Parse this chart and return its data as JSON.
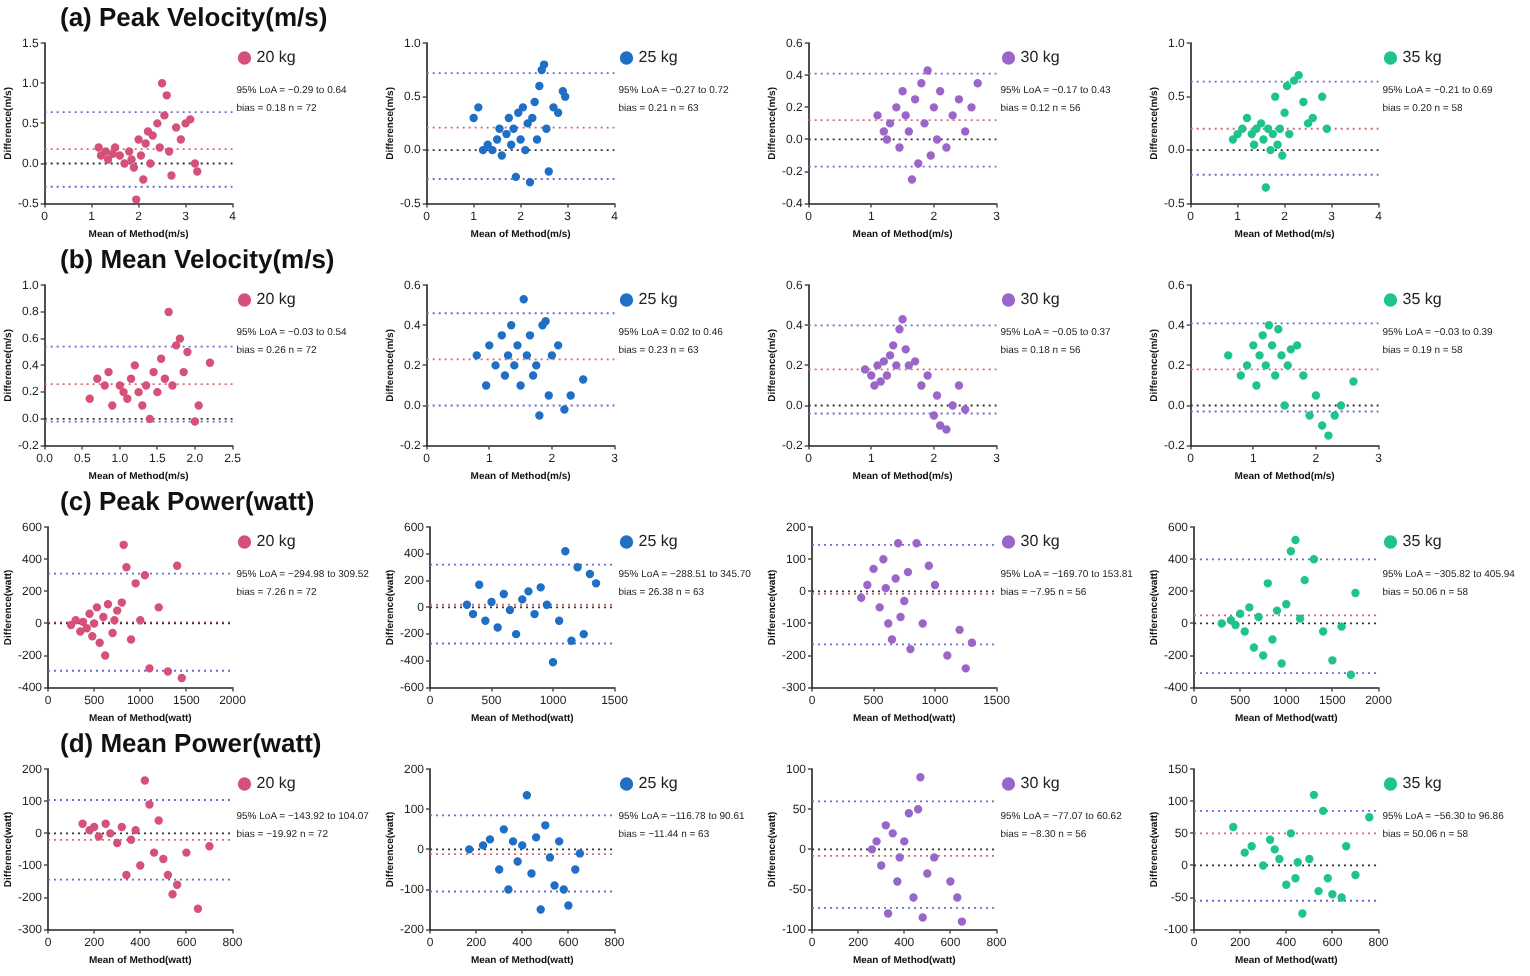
{
  "chart_data": [
    {
      "type": "scatter",
      "title": "(a) Peak Velocity(m/s)",
      "xlabel": "Mean of Method(m/s)",
      "ylabel": "Difference(m/s)",
      "legend": "right",
      "marker": "circle",
      "grid": false,
      "x": [
        1.15,
        1.2,
        1.3,
        1.35,
        1.45,
        1.5,
        1.6,
        1.7,
        1.8,
        1.85,
        1.9,
        1.95,
        2.0,
        2.05,
        2.1,
        2.15,
        2.2,
        2.25,
        2.3,
        2.4,
        2.45,
        2.5,
        2.55,
        2.6,
        2.65,
        2.7,
        2.8,
        2.9,
        3.0,
        3.1,
        3.2,
        3.25
      ],
      "series": [
        {
          "name": "20 kg",
          "color": "#d6517a",
          "values": [
            0.2,
            0.1,
            0.15,
            0.05,
            0.12,
            0.2,
            0.1,
            0.0,
            0.15,
            0.05,
            -0.05,
            -0.45,
            0.3,
            0.1,
            -0.2,
            0.25,
            0.4,
            0.0,
            0.35,
            0.5,
            0.2,
            1.0,
            0.6,
            0.85,
            0.15,
            -0.15,
            0.45,
            0.3,
            0.5,
            0.55,
            0.0,
            -0.1
          ]
        }
      ],
      "xlim": [
        0,
        4
      ],
      "xticks": [
        0,
        1,
        2,
        3,
        4
      ],
      "ylim": [
        -0.5,
        1.5
      ],
      "yticks": [
        {
          "value": -0.5,
          "label": "-0.5"
        },
        {
          "value": 0,
          "label": "0.0"
        },
        {
          "value": 0.5,
          "label": "0.5"
        },
        {
          "value": 1,
          "label": "1.0"
        },
        {
          "value": 1.5,
          "label": "1.5"
        }
      ],
      "ref_lines": [
        {
          "axis": "y",
          "value": 0.64,
          "color": "#6b6bd6",
          "line_style": "dotted"
        },
        {
          "axis": "y",
          "value": 0.18,
          "color": "#e06666",
          "line_style": "dotted"
        },
        {
          "axis": "y",
          "value": 0,
          "color": "#333333",
          "line_style": "dotted"
        },
        {
          "axis": "y",
          "value": -0.29,
          "color": "#6b6bd6",
          "line_style": "dotted"
        }
      ],
      "annotations": [
        "95% LoA = −0.29 to 0.64",
        "bias = 0.18 n = 72"
      ]
    },
    {
      "type": "scatter",
      "xlabel": "Mean of Method(m/s)",
      "ylabel": "Difference(m/s)",
      "legend": "right",
      "marker": "circle",
      "grid": false,
      "x": [
        1.0,
        1.1,
        1.2,
        1.3,
        1.4,
        1.5,
        1.55,
        1.6,
        1.7,
        1.75,
        1.8,
        1.85,
        1.9,
        1.95,
        2.0,
        2.05,
        2.1,
        2.15,
        2.2,
        2.25,
        2.3,
        2.35,
        2.4,
        2.45,
        2.5,
        2.55,
        2.6,
        2.7,
        2.8,
        2.9,
        2.95
      ],
      "series": [
        {
          "name": "25 kg",
          "color": "#1f6fc5",
          "values": [
            0.3,
            0.4,
            0.0,
            0.05,
            0.0,
            0.1,
            0.2,
            -0.05,
            0.15,
            0.3,
            0.05,
            0.2,
            -0.25,
            0.35,
            0.1,
            0.4,
            0.0,
            0.25,
            -0.3,
            0.3,
            0.45,
            0.1,
            0.6,
            0.75,
            0.8,
            0.2,
            -0.2,
            0.4,
            0.35,
            0.55,
            0.5
          ]
        }
      ],
      "xlim": [
        0,
        4
      ],
      "xticks": [
        0,
        1,
        2,
        3,
        4
      ],
      "ylim": [
        -0.5,
        1.0
      ],
      "yticks": [
        {
          "value": -0.5,
          "label": "-0.5"
        },
        {
          "value": 0,
          "label": "0.0"
        },
        {
          "value": 0.5,
          "label": "0.5"
        },
        {
          "value": 1,
          "label": "1.0"
        }
      ],
      "ref_lines": [
        {
          "axis": "y",
          "value": 0.72,
          "color": "#6b6bd6",
          "line_style": "dotted"
        },
        {
          "axis": "y",
          "value": 0.21,
          "color": "#e06666",
          "line_style": "dotted"
        },
        {
          "axis": "y",
          "value": 0,
          "color": "#333333",
          "line_style": "dotted"
        },
        {
          "axis": "y",
          "value": -0.27,
          "color": "#6b6bd6",
          "line_style": "dotted"
        }
      ],
      "annotations": [
        "95% LoA = −0.27 to 0.72",
        "bias = 0.21 n = 63"
      ]
    },
    {
      "type": "scatter",
      "xlabel": "Mean of Method(m/s)",
      "ylabel": "Difference(m/s)",
      "legend": "right",
      "marker": "circle",
      "grid": false,
      "x": [
        1.1,
        1.2,
        1.25,
        1.3,
        1.4,
        1.45,
        1.5,
        1.55,
        1.6,
        1.65,
        1.7,
        1.75,
        1.8,
        1.85,
        1.9,
        1.95,
        2.0,
        2.05,
        2.1,
        2.2,
        2.3,
        2.4,
        2.5,
        2.6,
        2.7
      ],
      "series": [
        {
          "name": "30 kg",
          "color": "#9a66c8",
          "values": [
            0.15,
            0.05,
            0.0,
            0.1,
            0.2,
            -0.05,
            0.3,
            0.15,
            0.05,
            -0.25,
            0.25,
            -0.15,
            0.35,
            0.1,
            0.43,
            -0.1,
            0.2,
            0.0,
            0.3,
            -0.05,
            0.15,
            0.25,
            0.05,
            0.2,
            0.35
          ]
        }
      ],
      "xlim": [
        0,
        3
      ],
      "xticks": [
        0,
        1,
        2,
        3
      ],
      "ylim": [
        -0.4,
        0.6
      ],
      "yticks": [
        {
          "value": -0.4,
          "label": "-0.4"
        },
        {
          "value": -0.2,
          "label": "-0.2"
        },
        {
          "value": 0,
          "label": "0.0"
        },
        {
          "value": 0.2,
          "label": "0.2"
        },
        {
          "value": 0.4,
          "label": "0.4"
        },
        {
          "value": 0.6,
          "label": "0.6"
        }
      ],
      "ref_lines": [
        {
          "axis": "y",
          "value": 0.41,
          "color": "#6b6bd6",
          "line_style": "dotted"
        },
        {
          "axis": "y",
          "value": 0.12,
          "color": "#e06666",
          "line_style": "dotted"
        },
        {
          "axis": "y",
          "value": 0,
          "color": "#333333",
          "line_style": "dotted"
        },
        {
          "axis": "y",
          "value": -0.17,
          "color": "#6b6bd6",
          "line_style": "dotted"
        }
      ],
      "annotations": [
        "95% LoA = −0.17 to 0.43",
        "bias = 0.12 n = 56"
      ]
    },
    {
      "type": "scatter",
      "xlabel": "Mean of Method(m/s)",
      "ylabel": "Difference(m/s)",
      "legend": "right",
      "marker": "circle",
      "grid": false,
      "x": [
        0.9,
        1.0,
        1.1,
        1.2,
        1.3,
        1.35,
        1.4,
        1.5,
        1.55,
        1.6,
        1.65,
        1.7,
        1.75,
        1.8,
        1.85,
        1.9,
        1.95,
        2.0,
        2.05,
        2.1,
        2.2,
        2.3,
        2.4,
        2.5,
        2.6,
        2.8,
        2.9
      ],
      "series": [
        {
          "name": "35 kg",
          "color": "#1fc48a",
          "values": [
            0.1,
            0.15,
            0.2,
            0.3,
            0.15,
            0.05,
            0.2,
            0.25,
            0.1,
            -0.35,
            0.2,
            0.0,
            0.15,
            0.5,
            0.05,
            0.2,
            -0.05,
            0.35,
            0.6,
            0.15,
            0.65,
            0.7,
            0.45,
            0.25,
            0.3,
            0.5,
            0.2
          ]
        }
      ],
      "xlim": [
        0,
        4
      ],
      "xticks": [
        0,
        1,
        2,
        3,
        4
      ],
      "ylim": [
        -0.5,
        1.0
      ],
      "yticks": [
        {
          "value": -0.5,
          "label": "-0.5"
        },
        {
          "value": 0,
          "label": "0.0"
        },
        {
          "value": 0.5,
          "label": "0.5"
        },
        {
          "value": 1,
          "label": "1.0"
        }
      ],
      "ref_lines": [
        {
          "axis": "y",
          "value": 0.64,
          "color": "#6b6bd6",
          "line_style": "dotted"
        },
        {
          "axis": "y",
          "value": 0.2,
          "color": "#e06666",
          "line_style": "dotted"
        },
        {
          "axis": "y",
          "value": 0,
          "color": "#333333",
          "line_style": "dotted"
        },
        {
          "axis": "y",
          "value": -0.23,
          "color": "#6b6bd6",
          "line_style": "dotted"
        }
      ],
      "annotations": [
        "95% LoA = −0.21 to 0.69",
        "bias = 0.20 n = 58"
      ]
    },
    {
      "type": "scatter",
      "title": "(b) Mean Velocity(m/s)",
      "xlabel": "Mean of Method(m/s)",
      "ylabel": "Difference(m/s)",
      "legend": "right",
      "marker": "circle",
      "grid": false,
      "x": [
        0.6,
        0.7,
        0.8,
        0.85,
        0.9,
        1.0,
        1.05,
        1.1,
        1.15,
        1.2,
        1.25,
        1.3,
        1.35,
        1.4,
        1.45,
        1.5,
        1.55,
        1.6,
        1.65,
        1.7,
        1.75,
        1.8,
        1.85,
        1.9,
        2.0,
        2.05,
        2.2
      ],
      "series": [
        {
          "name": "20 kg",
          "color": "#d6517a",
          "values": [
            0.15,
            0.3,
            0.25,
            0.35,
            0.1,
            0.25,
            0.2,
            0.15,
            0.3,
            0.4,
            0.2,
            0.1,
            0.25,
            0.0,
            0.35,
            0.2,
            0.45,
            0.3,
            0.8,
            0.25,
            0.55,
            0.6,
            0.35,
            0.5,
            -0.02,
            0.1,
            0.42
          ]
        }
      ],
      "xlim": [
        0,
        2.5
      ],
      "xticks": [
        {
          "value": 0,
          "label": "0.0"
        },
        {
          "value": 0.5,
          "label": "0.5"
        },
        {
          "value": 1,
          "label": "1.0"
        },
        {
          "value": 1.5,
          "label": "1.5"
        },
        {
          "value": 2,
          "label": "2.0"
        },
        {
          "value": 2.5,
          "label": "2.5"
        }
      ],
      "ylim": [
        -0.2,
        1.0
      ],
      "yticks": [
        {
          "value": -0.2,
          "label": "-0.2"
        },
        {
          "value": 0,
          "label": "0.0"
        },
        {
          "value": 0.2,
          "label": "0.2"
        },
        {
          "value": 0.4,
          "label": "0.4"
        },
        {
          "value": 0.6,
          "label": "0.6"
        },
        {
          "value": 0.8,
          "label": "0.8"
        },
        {
          "value": 1,
          "label": "1.0"
        }
      ],
      "ref_lines": [
        {
          "axis": "y",
          "value": 0.54,
          "color": "#6b6bd6",
          "line_style": "dotted"
        },
        {
          "axis": "y",
          "value": 0.26,
          "color": "#e06666",
          "line_style": "dotted"
        },
        {
          "axis": "y",
          "value": 0,
          "color": "#333333",
          "line_style": "dotted"
        },
        {
          "axis": "y",
          "value": -0.02,
          "color": "#6b6bd6",
          "line_style": "dotted"
        }
      ],
      "annotations": [
        "95% LoA = −0.03 to 0.54",
        "bias = 0.26 n = 72"
      ]
    },
    {
      "type": "scatter",
      "xlabel": "Mean of Method(m/s)",
      "ylabel": "Difference(m/s)",
      "legend": "right",
      "marker": "circle",
      "grid": false,
      "x": [
        0.8,
        0.95,
        1.0,
        1.1,
        1.2,
        1.25,
        1.3,
        1.35,
        1.4,
        1.45,
        1.5,
        1.55,
        1.6,
        1.65,
        1.7,
        1.75,
        1.8,
        1.85,
        1.9,
        1.95,
        2.0,
        2.1,
        2.2,
        2.3,
        2.5
      ],
      "series": [
        {
          "name": "25 kg",
          "color": "#1f6fc5",
          "values": [
            0.25,
            0.1,
            0.3,
            0.2,
            0.35,
            0.15,
            0.25,
            0.4,
            0.2,
            0.3,
            0.1,
            0.53,
            0.25,
            0.35,
            0.15,
            0.2,
            -0.05,
            0.4,
            0.42,
            0.05,
            0.25,
            0.3,
            -0.02,
            0.05,
            0.13
          ]
        }
      ],
      "xlim": [
        0,
        3
      ],
      "xticks": [
        0,
        1,
        2,
        3
      ],
      "ylim": [
        -0.2,
        0.6
      ],
      "yticks": [
        {
          "value": -0.2,
          "label": "-0.2"
        },
        {
          "value": 0,
          "label": "0.0"
        },
        {
          "value": 0.2,
          "label": "0.2"
        },
        {
          "value": 0.4,
          "label": "0.4"
        },
        {
          "value": 0.6,
          "label": "0.6"
        }
      ],
      "ref_lines": [
        {
          "axis": "y",
          "value": 0.46,
          "color": "#6b6bd6",
          "line_style": "dotted"
        },
        {
          "axis": "y",
          "value": 0.23,
          "color": "#e06666",
          "line_style": "dotted"
        },
        {
          "axis": "y",
          "value": 0,
          "color": "#6b6bd6",
          "line_style": "dotted"
        }
      ],
      "annotations": [
        "95% LoA = 0.02 to 0.46",
        "bias = 0.23 n = 63"
      ]
    },
    {
      "type": "scatter",
      "xlabel": "Mean of Method(m/s)",
      "ylabel": "Difference(m/s)",
      "legend": "right",
      "marker": "circle",
      "grid": false,
      "x": [
        0.9,
        1.0,
        1.05,
        1.1,
        1.15,
        1.2,
        1.25,
        1.3,
        1.35,
        1.4,
        1.45,
        1.5,
        1.55,
        1.6,
        1.7,
        1.8,
        1.9,
        2.0,
        2.05,
        2.1,
        2.2,
        2.3,
        2.4,
        2.5
      ],
      "series": [
        {
          "name": "30 kg",
          "color": "#9a66c8",
          "values": [
            0.18,
            0.15,
            0.1,
            0.2,
            0.12,
            0.22,
            0.15,
            0.25,
            0.3,
            0.2,
            0.38,
            0.43,
            0.28,
            0.2,
            0.22,
            0.1,
            0.15,
            -0.05,
            0.05,
            -0.1,
            -0.12,
            0.0,
            0.1,
            -0.02
          ]
        }
      ],
      "xlim": [
        0,
        3
      ],
      "xticks": [
        0,
        1,
        2,
        3
      ],
      "ylim": [
        -0.2,
        0.6
      ],
      "yticks": [
        {
          "value": -0.2,
          "label": "-0.2"
        },
        {
          "value": 0,
          "label": "0.0"
        },
        {
          "value": 0.2,
          "label": "0.2"
        },
        {
          "value": 0.4,
          "label": "0.4"
        },
        {
          "value": 0.6,
          "label": "0.6"
        }
      ],
      "ref_lines": [
        {
          "axis": "y",
          "value": 0.4,
          "color": "#6b6bd6",
          "line_style": "dotted"
        },
        {
          "axis": "y",
          "value": 0.18,
          "color": "#e06666",
          "line_style": "dotted"
        },
        {
          "axis": "y",
          "value": 0,
          "color": "#333333",
          "line_style": "dotted"
        },
        {
          "axis": "y",
          "value": -0.04,
          "color": "#6b6bd6",
          "line_style": "dotted"
        }
      ],
      "annotations": [
        "95% LoA = −0.05 to 0.37",
        "bias = 0.18 n = 56"
      ]
    },
    {
      "type": "scatter",
      "xlabel": "Mean of Method(m/s)",
      "ylabel": "Difference(m/s)",
      "legend": "right",
      "marker": "circle",
      "grid": false,
      "x": [
        0.6,
        0.8,
        0.9,
        1.0,
        1.05,
        1.1,
        1.15,
        1.2,
        1.25,
        1.3,
        1.35,
        1.4,
        1.45,
        1.5,
        1.55,
        1.6,
        1.7,
        1.8,
        1.9,
        2.0,
        2.1,
        2.2,
        2.3,
        2.4,
        2.6
      ],
      "series": [
        {
          "name": "35 kg",
          "color": "#1fc48a",
          "values": [
            0.25,
            0.15,
            0.2,
            0.3,
            0.1,
            0.25,
            0.35,
            0.2,
            0.4,
            0.3,
            0.15,
            0.38,
            0.25,
            0.0,
            0.2,
            0.28,
            0.3,
            0.15,
            -0.05,
            0.05,
            -0.1,
            -0.15,
            -0.05,
            0.0,
            0.12
          ]
        }
      ],
      "xlim": [
        0,
        3
      ],
      "xticks": [
        0,
        1,
        2,
        3
      ],
      "ylim": [
        -0.2,
        0.6
      ],
      "yticks": [
        {
          "value": -0.2,
          "label": "-0.2"
        },
        {
          "value": 0,
          "label": "0.0"
        },
        {
          "value": 0.2,
          "label": "0.2"
        },
        {
          "value": 0.4,
          "label": "0.4"
        },
        {
          "value": 0.6,
          "label": "0.6"
        }
      ],
      "ref_lines": [
        {
          "axis": "y",
          "value": 0.41,
          "color": "#6b6bd6",
          "line_style": "dotted"
        },
        {
          "axis": "y",
          "value": 0.18,
          "color": "#e06666",
          "line_style": "dotted"
        },
        {
          "axis": "y",
          "value": 0,
          "color": "#333333",
          "line_style": "dotted"
        },
        {
          "axis": "y",
          "value": -0.03,
          "color": "#6b6bd6",
          "line_style": "dotted"
        }
      ],
      "annotations": [
        "95% LoA = −0.03 to 0.39",
        "bias = 0.19 n = 58"
      ]
    },
    {
      "type": "scatter",
      "title": "(c) Peak Power(watt)",
      "xlabel": "Mean of Method(watt)",
      "ylabel": "Difference(watt)",
      "legend": "right",
      "marker": "circle",
      "grid": false,
      "x": [
        250,
        300,
        350,
        380,
        420,
        450,
        480,
        500,
        530,
        560,
        600,
        620,
        650,
        700,
        720,
        750,
        800,
        820,
        850,
        900,
        950,
        1000,
        1050,
        1100,
        1200,
        1300,
        1400,
        1450
      ],
      "series": [
        {
          "name": "20 kg",
          "color": "#d6517a",
          "values": [
            -10,
            20,
            -50,
            10,
            -30,
            60,
            -80,
            0,
            100,
            -120,
            40,
            -200,
            120,
            -60,
            20,
            80,
            130,
            490,
            350,
            -100,
            250,
            20,
            300,
            -280,
            100,
            -300,
            360,
            -340
          ]
        }
      ],
      "xlim": [
        0,
        2000
      ],
      "xticks": [
        0,
        500,
        1000,
        1500,
        2000
      ],
      "ylim": [
        -400,
        600
      ],
      "yticks": [
        -400,
        -200,
        0,
        200,
        400,
        600
      ],
      "ref_lines": [
        {
          "axis": "y",
          "value": 310,
          "color": "#6b6bd6",
          "line_style": "dotted"
        },
        {
          "axis": "y",
          "value": 7,
          "color": "#e06666",
          "line_style": "dotted"
        },
        {
          "axis": "y",
          "value": 0,
          "color": "#333333",
          "line_style": "dotted"
        },
        {
          "axis": "y",
          "value": -295,
          "color": "#6b6bd6",
          "line_style": "dotted"
        }
      ],
      "annotations": [
        "95% LoA = −294.98 to 309.52",
        "bias = 7.26 n = 72"
      ]
    },
    {
      "type": "scatter",
      "xlabel": "Mean of Method(watt)",
      "ylabel": "Difference(watt)",
      "legend": "right",
      "marker": "circle",
      "grid": false,
      "x": [
        300,
        350,
        400,
        450,
        500,
        550,
        600,
        650,
        700,
        750,
        800,
        850,
        900,
        950,
        1000,
        1050,
        1100,
        1150,
        1200,
        1250,
        1300,
        1350
      ],
      "series": [
        {
          "name": "25 kg",
          "color": "#1f6fc5",
          "values": [
            20,
            -50,
            170,
            -100,
            40,
            -150,
            100,
            -20,
            -200,
            60,
            120,
            -50,
            150,
            20,
            -410,
            -100,
            420,
            -250,
            300,
            -200,
            250,
            180
          ]
        }
      ],
      "xlim": [
        0,
        1500
      ],
      "xticks": [
        0,
        500,
        1000,
        1500
      ],
      "ylim": [
        -600,
        600
      ],
      "yticks": [
        -600,
        -400,
        -200,
        0,
        200,
        400,
        600
      ],
      "ref_lines": [
        {
          "axis": "y",
          "value": 320,
          "color": "#6b6bd6",
          "line_style": "dotted"
        },
        {
          "axis": "y",
          "value": 20,
          "color": "#e06666",
          "line_style": "dotted"
        },
        {
          "axis": "y",
          "value": 0,
          "color": "#333333",
          "line_style": "dotted"
        },
        {
          "axis": "y",
          "value": -270,
          "color": "#6b6bd6",
          "line_style": "dotted"
        }
      ],
      "annotations": [
        "95% LoA = −288.51 to 345.70",
        "bias = 26.38 n = 63"
      ]
    },
    {
      "type": "scatter",
      "xlabel": "Mean of Method(watt)",
      "ylabel": "Difference(watt)",
      "legend": "right",
      "marker": "circle",
      "grid": false,
      "x": [
        400,
        450,
        500,
        550,
        580,
        600,
        620,
        650,
        680,
        700,
        720,
        750,
        780,
        800,
        850,
        900,
        950,
        1000,
        1100,
        1200,
        1250,
        1300
      ],
      "series": [
        {
          "name": "30 kg",
          "color": "#9a66c8",
          "values": [
            -20,
            20,
            70,
            -50,
            100,
            10,
            -100,
            -150,
            40,
            150,
            -80,
            -30,
            60,
            -180,
            150,
            -100,
            80,
            20,
            -200,
            -120,
            -240,
            -160
          ]
        }
      ],
      "xlim": [
        0,
        1500
      ],
      "xticks": [
        0,
        500,
        1000,
        1500
      ],
      "ylim": [
        -300,
        200
      ],
      "yticks": [
        -300,
        -200,
        -100,
        0,
        100,
        200
      ],
      "ref_lines": [
        {
          "axis": "y",
          "value": 145,
          "color": "#6b6bd6",
          "line_style": "dotted"
        },
        {
          "axis": "y",
          "value": -8,
          "color": "#e06666",
          "line_style": "dotted"
        },
        {
          "axis": "y",
          "value": 0,
          "color": "#333333",
          "line_style": "dotted"
        },
        {
          "axis": "y",
          "value": -165,
          "color": "#6b6bd6",
          "line_style": "dotted"
        }
      ],
      "annotations": [
        "95% LoA = −169.70 to 153.81",
        "bias = −7.95 n = 56"
      ]
    },
    {
      "type": "scatter",
      "xlabel": "Mean of Method(watt)",
      "ylabel": "Difference(watt)",
      "legend": "right",
      "marker": "circle",
      "grid": false,
      "x": [
        300,
        400,
        450,
        500,
        550,
        600,
        650,
        700,
        750,
        800,
        850,
        900,
        950,
        1000,
        1050,
        1100,
        1150,
        1200,
        1300,
        1400,
        1500,
        1600,
        1700,
        1750
      ],
      "series": [
        {
          "name": "35 kg",
          "color": "#1fc48a",
          "values": [
            0,
            20,
            -10,
            60,
            -50,
            100,
            -150,
            40,
            -200,
            250,
            -100,
            80,
            -250,
            120,
            450,
            520,
            30,
            270,
            400,
            -50,
            -230,
            -20,
            -320,
            190
          ]
        }
      ],
      "xlim": [
        0,
        2000
      ],
      "xticks": [
        0,
        500,
        1000,
        1500,
        2000
      ],
      "ylim": [
        -400,
        600
      ],
      "yticks": [
        -400,
        -200,
        0,
        200,
        400,
        600
      ],
      "ref_lines": [
        {
          "axis": "y",
          "value": 400,
          "color": "#6b6bd6",
          "line_style": "dotted"
        },
        {
          "axis": "y",
          "value": 50,
          "color": "#e06666",
          "line_style": "dotted"
        },
        {
          "axis": "y",
          "value": 0,
          "color": "#333333",
          "line_style": "dotted"
        },
        {
          "axis": "y",
          "value": -310,
          "color": "#6b6bd6",
          "line_style": "dotted"
        }
      ],
      "annotations": [
        "95% LoA = −305.82 to 405.94",
        "bias = 50.06 n = 58"
      ]
    },
    {
      "type": "scatter",
      "title": "(d) Mean Power(watt)",
      "xlabel": "Mean of Method(watt)",
      "ylabel": "Difference(watt)",
      "legend": "right",
      "marker": "circle",
      "grid": false,
      "x": [
        150,
        180,
        200,
        220,
        250,
        270,
        300,
        320,
        340,
        360,
        380,
        400,
        420,
        440,
        460,
        480,
        500,
        520,
        540,
        560,
        600,
        650,
        700
      ],
      "series": [
        {
          "name": "20 kg",
          "color": "#d6517a",
          "values": [
            30,
            10,
            20,
            -10,
            30,
            0,
            -30,
            20,
            -130,
            -20,
            10,
            -100,
            165,
            90,
            -60,
            40,
            -80,
            -130,
            -190,
            -160,
            -60,
            -235,
            -40
          ]
        }
      ],
      "xlim": [
        0,
        800
      ],
      "xticks": [
        0,
        200,
        400,
        600,
        800
      ],
      "ylim": [
        -300,
        200
      ],
      "yticks": [
        -300,
        -200,
        -100,
        0,
        100,
        200
      ],
      "ref_lines": [
        {
          "axis": "y",
          "value": 104,
          "color": "#6b6bd6",
          "line_style": "dotted"
        },
        {
          "axis": "y",
          "value": -20,
          "color": "#e06666",
          "line_style": "dotted"
        },
        {
          "axis": "y",
          "value": 0,
          "color": "#333333",
          "line_style": "dotted"
        },
        {
          "axis": "y",
          "value": -144,
          "color": "#6b6bd6",
          "line_style": "dotted"
        }
      ],
      "annotations": [
        "95% LoA = −143.92 to 104.07",
        "bias = −19.92 n = 72"
      ]
    },
    {
      "type": "scatter",
      "xlabel": "Mean of Method(watt)",
      "ylabel": "Difference(watt)",
      "legend": "right",
      "marker": "circle",
      "grid": false,
      "x": [
        170,
        230,
        260,
        300,
        320,
        340,
        360,
        380,
        400,
        420,
        440,
        460,
        480,
        500,
        520,
        540,
        560,
        580,
        600,
        630,
        650
      ],
      "series": [
        {
          "name": "25 kg",
          "color": "#1f6fc5",
          "values": [
            0,
            10,
            25,
            -50,
            50,
            -100,
            20,
            -30,
            10,
            135,
            -60,
            30,
            -150,
            60,
            -20,
            -90,
            20,
            -100,
            -140,
            -50,
            -10
          ]
        }
      ],
      "xlim": [
        0,
        800
      ],
      "xticks": [
        0,
        200,
        400,
        600,
        800
      ],
      "ylim": [
        -200,
        200
      ],
      "yticks": [
        -200,
        -100,
        0,
        100,
        200
      ],
      "ref_lines": [
        {
          "axis": "y",
          "value": 85,
          "color": "#6b6bd6",
          "line_style": "dotted"
        },
        {
          "axis": "y",
          "value": -12,
          "color": "#e06666",
          "line_style": "dotted"
        },
        {
          "axis": "y",
          "value": 0,
          "color": "#333333",
          "line_style": "dotted"
        },
        {
          "axis": "y",
          "value": -105,
          "color": "#6b6bd6",
          "line_style": "dotted"
        }
      ],
      "annotations": [
        "95% LoA = −116.78 to 90.61",
        "bias = −11.44 n = 63"
      ]
    },
    {
      "type": "scatter",
      "xlabel": "Mean of Method(watt)",
      "ylabel": "Difference(watt)",
      "legend": "right",
      "marker": "circle",
      "grid": false,
      "x": [
        260,
        280,
        300,
        320,
        330,
        350,
        370,
        380,
        400,
        420,
        440,
        460,
        470,
        480,
        500,
        530,
        600,
        630,
        650
      ],
      "series": [
        {
          "name": "30 kg",
          "color": "#9a66c8",
          "values": [
            0,
            10,
            -20,
            30,
            -80,
            20,
            -40,
            -10,
            10,
            45,
            -60,
            50,
            90,
            -85,
            -30,
            -10,
            -40,
            -60,
            -90
          ]
        }
      ],
      "xlim": [
        0,
        800
      ],
      "xticks": [
        0,
        200,
        400,
        600,
        800
      ],
      "ylim": [
        -100,
        100
      ],
      "yticks": [
        -100,
        -50,
        0,
        50,
        100
      ],
      "ref_lines": [
        {
          "axis": "y",
          "value": 60,
          "color": "#6b6bd6",
          "line_style": "dotted"
        },
        {
          "axis": "y",
          "value": -8,
          "color": "#e06666",
          "line_style": "dotted"
        },
        {
          "axis": "y",
          "value": 0,
          "color": "#333333",
          "line_style": "dotted"
        },
        {
          "axis": "y",
          "value": -73,
          "color": "#6b6bd6",
          "line_style": "dotted"
        }
      ],
      "annotations": [
        "95% LoA = −77.07 to 60.62",
        "bias = −8.30 n = 56"
      ]
    },
    {
      "type": "scatter",
      "xlabel": "Mean of Method(watt)",
      "ylabel": "Difference(watt)",
      "legend": "right",
      "marker": "circle",
      "grid": false,
      "x": [
        170,
        220,
        250,
        300,
        330,
        350,
        370,
        400,
        420,
        440,
        450,
        470,
        500,
        520,
        540,
        560,
        580,
        600,
        640,
        660,
        700,
        760
      ],
      "series": [
        {
          "name": "35 kg",
          "color": "#1fc48a",
          "values": [
            60,
            20,
            30,
            0,
            40,
            25,
            10,
            -30,
            50,
            -20,
            5,
            -75,
            10,
            110,
            -40,
            85,
            -20,
            -45,
            -50,
            30,
            -15,
            75
          ]
        }
      ],
      "xlim": [
        0,
        800
      ],
      "xticks": [
        0,
        200,
        400,
        600,
        800
      ],
      "ylim": [
        -100,
        150
      ],
      "yticks": [
        -100,
        -50,
        0,
        50,
        100,
        150
      ],
      "ref_lines": [
        {
          "axis": "y",
          "value": 85,
          "color": "#6b6bd6",
          "line_style": "dotted"
        },
        {
          "axis": "y",
          "value": 50,
          "color": "#e06666",
          "line_style": "dotted"
        },
        {
          "axis": "y",
          "value": 0,
          "color": "#333333",
          "line_style": "dotted"
        },
        {
          "axis": "y",
          "value": -55,
          "color": "#6b6bd6",
          "line_style": "dotted"
        }
      ],
      "annotations": [
        "95% LoA = −56.30 to 96.86",
        "bias = 50.06 n = 58"
      ]
    }
  ]
}
